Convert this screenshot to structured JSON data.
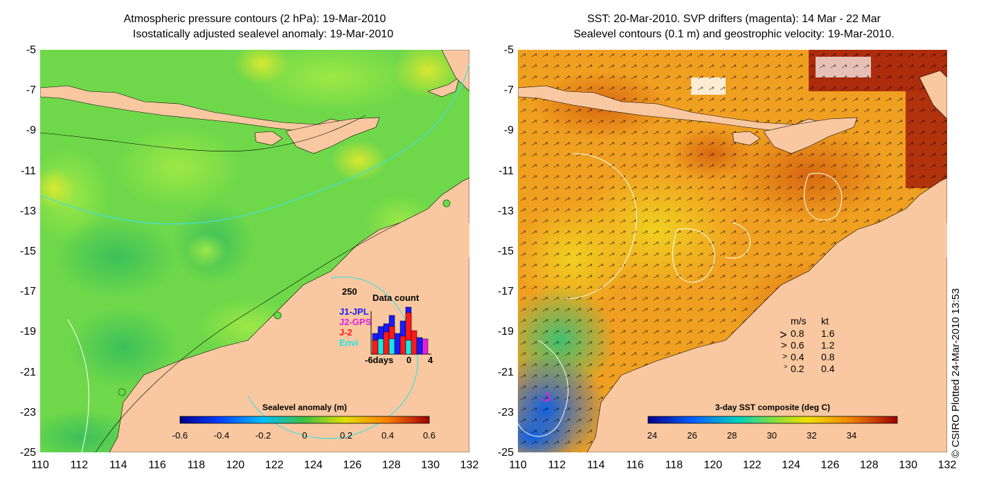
{
  "left_panel": {
    "title_line1": "Atmospheric pressure contours (2 hPa): 19-Mar-2010",
    "title_line2": "Isostatically adjusted sealevel anomaly: 19-Mar-2010",
    "colorbar": {
      "title": "Sealevel anomaly (m)",
      "ticks": [
        "-0.6",
        "-0.4",
        "-0.2",
        "0",
        "0.2",
        "0.4",
        "0.6"
      ]
    },
    "data_count": {
      "title": "Data count",
      "max_label": "250",
      "x_ticks": [
        "-6days",
        "0",
        "4"
      ],
      "missions": [
        {
          "name": "J1-JPL",
          "color": "#1a1aff"
        },
        {
          "name": "J2-GPS",
          "color": "#e21ee2"
        },
        {
          "name": "J-2",
          "color": "#ff1a1a"
        },
        {
          "name": "Envi",
          "color": "#19e6e6"
        }
      ]
    }
  },
  "right_panel": {
    "title_line1": "SST: 20-Mar-2010. SVP drifters (magenta): 14 Mar - 22 Mar",
    "title_line2": "Sealevel contours (0.1 m) and geostrophic velocity: 19-Mar-2010.",
    "colorbar": {
      "title": "3-day SST composite (deg C)",
      "ticks": [
        "24",
        "26",
        "28",
        "30",
        "32",
        "34"
      ]
    },
    "speed_legend": {
      "header_ms": "m/s",
      "header_kt": "kt",
      "rows": [
        {
          "ms": "0.8",
          "kt": "1.6"
        },
        {
          "ms": "0.6",
          "kt": "1.2"
        },
        {
          "ms": "0.4",
          "kt": "0.8"
        },
        {
          "ms": "0.2",
          "kt": "0.4"
        }
      ]
    }
  },
  "axes": {
    "y_ticks": [
      "-5",
      "-7",
      "-9",
      "-11",
      "-13",
      "-15",
      "-17",
      "-19",
      "-21",
      "-23",
      "-25"
    ],
    "x_ticks": [
      "110",
      "112",
      "114",
      "116",
      "118",
      "120",
      "122",
      "124",
      "126",
      "128",
      "130",
      "132"
    ]
  },
  "credit": "© CSIRO Plotted 24-Mar-2010 13:53",
  "colors": {
    "land": "#f9c8a0",
    "sla_ocean": "#6fd84a",
    "sst_ocean": "#f0a020",
    "contour_cyan": "#40e0e0"
  }
}
